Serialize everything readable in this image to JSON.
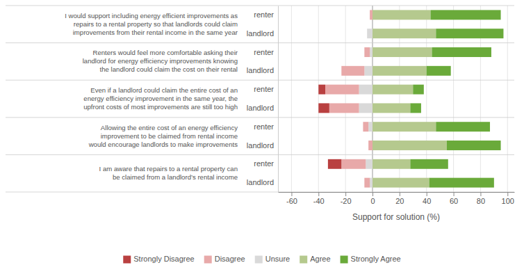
{
  "chart_data": {
    "type": "bar",
    "orientation": "horizontal",
    "stacked": true,
    "grid": true,
    "xlabel": "Support for solution (%)",
    "annotations": [
      "I would support including energy efficient improvements as\nrepairs to a rental property so that landlords could claim\nimprovements from their rental income in the same year",
      "Renters would feel more comfortable asking their\nlandlord for energy efficiency improvements knowing\nthe landlord could claim the cost on their rental",
      "Even if a landlord could claim the entire cost of an\nenergy efficiency improvement in the same year, the\nupfront costs of most improvements are still too high",
      "Allowing the entire cost of an energy efficiency\nimprovement to be claimed from rental income\nwould encourage landlords to make improvements",
      "I am aware that repairs to a rental property can\nbe claimed from a landlord’s rental income"
    ],
    "categories": [
      "renter",
      "landlord",
      "renter",
      "landlord",
      "renter",
      "landlord",
      "renter",
      "landlord",
      "renter",
      "landlord"
    ],
    "series": [
      {
        "name": "Strongly Disagree",
        "color": "#b94040",
        "values": [
          0,
          0,
          0,
          0,
          -5,
          -8,
          0,
          0,
          -10,
          0
        ]
      },
      {
        "name": "Disagree",
        "color": "#e8a9a9",
        "values": [
          -2,
          0,
          -4,
          -17,
          -25,
          -22,
          -4,
          -3,
          -18,
          -4
        ]
      },
      {
        "name": "Unsure",
        "color": "#d9d9d9",
        "values": [
          0,
          -4,
          -2,
          -6,
          -10,
          -10,
          -3,
          0,
          -5,
          -2
        ]
      },
      {
        "name": "Agree",
        "color": "#b5c98e",
        "values": [
          43,
          47,
          44,
          40,
          30,
          28,
          47,
          55,
          28,
          42
        ]
      },
      {
        "name": "Strongly Agree",
        "color": "#6aaa3a",
        "values": [
          52,
          50,
          44,
          18,
          8,
          8,
          40,
          40,
          28,
          48
        ]
      }
    ],
    "xlim": [
      -70,
      105
    ],
    "xticks": [
      -60,
      -40,
      -20,
      0,
      20,
      40,
      60,
      80,
      100
    ]
  }
}
